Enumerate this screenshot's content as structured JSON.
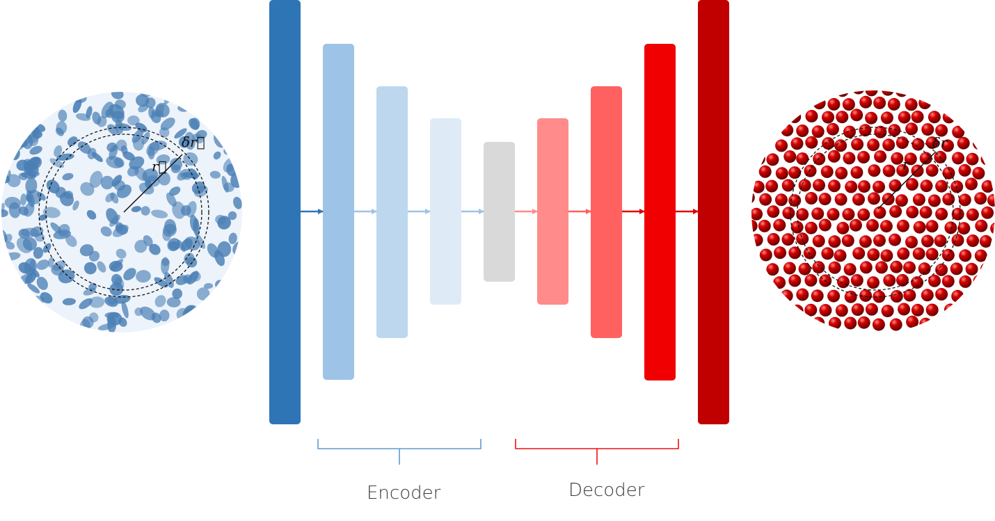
{
  "encoder_label": "Encoder",
  "decoder_label": "Decoder",
  "left_panel": {
    "r_label": "r⃗",
    "dr_label": "δr⃗"
  },
  "right_panel": {
    "r_label": "r",
    "dr_label": "δr"
  },
  "layers": [
    {
      "color": "#2e75b6"
    },
    {
      "color": "#9dc3e6"
    },
    {
      "color": "#bdd7ee"
    },
    {
      "color": "#deebf7"
    },
    {
      "color": "#d9d9d9"
    },
    {
      "color": "#ff8b8b"
    },
    {
      "color": "#ff6161"
    },
    {
      "color": "#f00000"
    },
    {
      "color": "#c00000"
    }
  ],
  "arrows": [
    {
      "color": "#2e75b6"
    },
    {
      "color": "#9dc3e6"
    },
    {
      "color": "#9dc3e6"
    },
    {
      "color": "#9dc3e6"
    },
    {
      "color": "#ff8b8b"
    },
    {
      "color": "#ff6161"
    },
    {
      "color": "#e00000"
    },
    {
      "color": "#e00000"
    }
  ],
  "colors": {
    "encoder_brace": "#5b9bd5",
    "decoder_brace": "#ee1111",
    "blue_texture": "#4a7fb5",
    "red_sphere": "#c00000"
  }
}
